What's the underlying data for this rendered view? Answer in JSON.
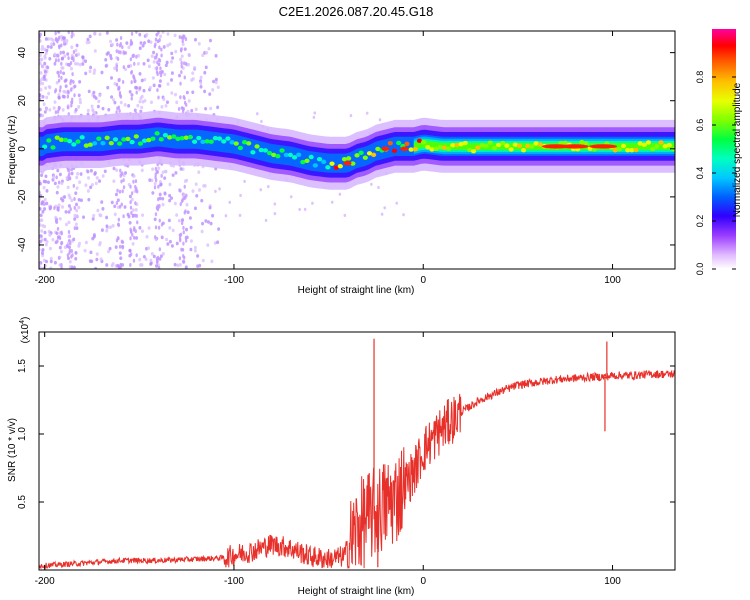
{
  "title": "C2E1.2026.087.20.45.G18",
  "chart_data": [
    {
      "type": "heatmap",
      "name": "spectrogram",
      "xlabel": "Height of straight line (km)",
      "ylabel": "Frequency (Hz)",
      "xlim": [
        -203,
        133
      ],
      "ylim": [
        -50,
        49
      ],
      "xticks": [
        -200,
        -100,
        0,
        100
      ],
      "yticks": [
        -40,
        -20,
        0,
        20,
        40
      ],
      "xtick_labels": [
        "-200",
        "-100",
        "0",
        "100"
      ],
      "ytick_labels": [
        "-40",
        "-20",
        "0",
        "20",
        "40"
      ],
      "ridge": {
        "x": [
          -200,
          -190,
          -180,
          -170,
          -160,
          -150,
          -140,
          -130,
          -120,
          -110,
          -100,
          -90,
          -80,
          -70,
          -60,
          -50,
          -45,
          -40,
          -35,
          -30,
          -25,
          -20,
          -15,
          -10,
          -5,
          0,
          10,
          20,
          40,
          60,
          80,
          100,
          133
        ],
        "freq": [
          2,
          3,
          3,
          3,
          4,
          4,
          5,
          4,
          4,
          3,
          2,
          0,
          -2,
          -3,
          -5,
          -6,
          -6,
          -6,
          -4,
          -3,
          -1,
          0,
          1,
          1,
          1,
          2,
          1,
          1,
          1,
          1,
          1,
          1,
          1
        ]
      },
      "colorbar": {
        "label": "Normalized spectral amplitude",
        "range": [
          0.0,
          1.0
        ],
        "ticks": [
          "0.0",
          "0.2",
          "0.4",
          "0.6",
          "0.8"
        ],
        "colors": [
          "#ffffff",
          "#c8a2ff",
          "#7f00ff",
          "#0000ff",
          "#00bfff",
          "#00ffc8",
          "#00ff00",
          "#c8ff00",
          "#ffff00",
          "#ff8000",
          "#ff0000",
          "#ff00a0"
        ]
      }
    },
    {
      "type": "line",
      "name": "snr",
      "xlabel": "Height of straight line (km)",
      "ylabel": "SNR (10 * v/v)",
      "y_multiplier": "(x10",
      "y_multiplier_exp": "4",
      "y_multiplier_close": ")",
      "xlim": [
        -203,
        133
      ],
      "ylim": [
        0.0,
        1.75
      ],
      "xticks": [
        -200,
        -100,
        0,
        100
      ],
      "yticks": [
        0.5,
        1.0,
        1.5
      ],
      "xtick_labels": [
        "-200",
        "-100",
        "0",
        "100"
      ],
      "ytick_labels": [
        "0.5",
        "1.0",
        "1.5"
      ],
      "color": "#e8302a",
      "series": {
        "x": [
          -203,
          -180,
          -160,
          -140,
          -120,
          -105,
          -100,
          -90,
          -80,
          -70,
          -60,
          -50,
          -42,
          -35,
          -30,
          -25,
          -20,
          -15,
          -10,
          -5,
          0,
          5,
          10,
          15,
          20,
          30,
          40,
          50,
          60,
          70,
          80,
          90,
          96,
          100,
          110,
          120,
          133
        ],
        "y": [
          0.03,
          0.05,
          0.07,
          0.07,
          0.08,
          0.09,
          0.11,
          0.14,
          0.19,
          0.16,
          0.1,
          0.08,
          0.1,
          0.3,
          0.38,
          0.42,
          0.48,
          0.52,
          0.62,
          0.72,
          0.88,
          0.96,
          1.04,
          1.1,
          1.16,
          1.25,
          1.31,
          1.36,
          1.38,
          1.4,
          1.41,
          1.42,
          1.42,
          1.43,
          1.43,
          1.44,
          1.44
        ]
      },
      "spikes": [
        {
          "x": -26,
          "y": 1.7
        },
        {
          "x": -24,
          "y": 0.02
        },
        {
          "x": 97,
          "y": 1.68
        },
        {
          "x": 96,
          "y": 1.02
        }
      ]
    }
  ]
}
